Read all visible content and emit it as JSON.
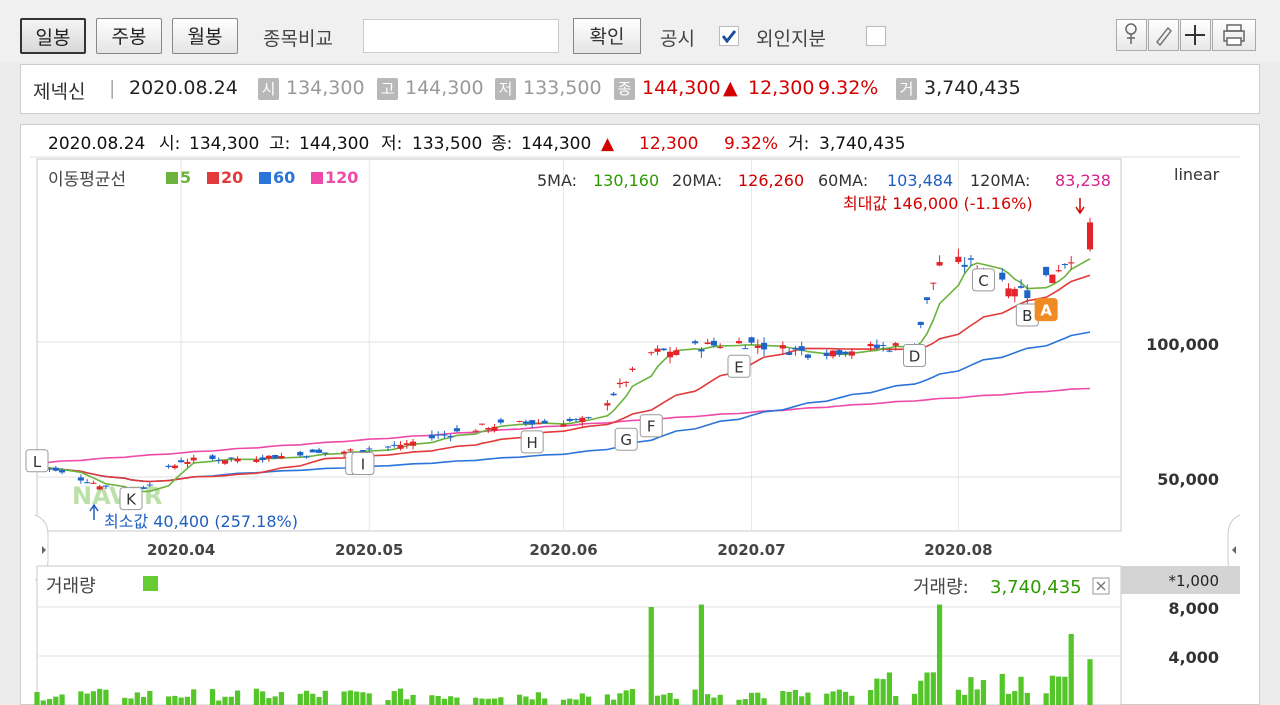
{
  "toolbar": {
    "tabs": [
      {
        "label": "일봉",
        "active": true
      },
      {
        "label": "주봉",
        "active": false
      },
      {
        "label": "월봉",
        "active": false
      }
    ],
    "compare_label": "종목비교",
    "compare_value": "",
    "confirm_label": "확인",
    "disclosure_label": "공시",
    "disclosure_checked": true,
    "foreign_label": "외인지분",
    "foreign_checked": false,
    "tool_icons": [
      "pin-icon",
      "pen-icon",
      "crosshair-icon",
      "printer-icon"
    ]
  },
  "info": {
    "name": "제넥신",
    "date": "2020.08.24",
    "open_badge": "시",
    "open": "134,300",
    "high_badge": "고",
    "high": "144,300",
    "low_badge": "저",
    "low": "133,500",
    "close_badge": "종",
    "close": "144,300",
    "change_arrow": "▲",
    "change": "12,300",
    "change_pct": "9.32%",
    "volume_badge": "거",
    "volume": "3,740,435",
    "colors": {
      "up": "#d40000",
      "muted": "#999999",
      "accent": "#f08a22"
    }
  },
  "chart_data": {
    "type": "candlestick",
    "header": {
      "date": "2020.08.24",
      "open_label": "시:",
      "open": "134,300",
      "high_label": "고:",
      "high": "144,300",
      "low_label": "저:",
      "low": "133,500",
      "close_label": "종:",
      "close": "144,300",
      "arrow": "▲",
      "change": "12,300",
      "change_pct": "9.32%",
      "volume_label": "거:",
      "volume": "3,740,435"
    },
    "ma_legend_title": "이동평균선",
    "ma_series": [
      {
        "name": "5",
        "color": "#6cb33e"
      },
      {
        "name": "20",
        "color": "#e23a3a"
      },
      {
        "name": "60",
        "color": "#2b74d9"
      },
      {
        "name": "120",
        "color": "#ee4aa9"
      }
    ],
    "ma_values": [
      {
        "label": "5MA:",
        "value": "130,160",
        "color": "#2e9a00"
      },
      {
        "label": "20MA:",
        "value": "126,260",
        "color": "#cc0000"
      },
      {
        "label": "60MA:",
        "value": "103,484",
        "color": "#1f5fbf"
      },
      {
        "label": "120MA:",
        "value": "83,238",
        "color": "#d6238a"
      }
    ],
    "scale_label": "linear",
    "price_axis": {
      "ticks": [
        {
          "value": 100000,
          "label": "100,000"
        },
        {
          "value": 50000,
          "label": "50,000"
        }
      ],
      "ylim": [
        30000,
        160000
      ]
    },
    "x_ticks": [
      {
        "date": "2020-04-01",
        "label": "2020.04"
      },
      {
        "date": "2020-05-01",
        "label": "2020.05"
      },
      {
        "date": "2020-06-01",
        "label": "2020.06"
      },
      {
        "date": "2020-07-01",
        "label": "2020.07"
      },
      {
        "date": "2020-08-03",
        "label": "2020.08"
      }
    ],
    "max_annotation": "최대값 146,000 (-1.16%)",
    "min_annotation": "최소값 40,400 (257.18%)",
    "events": [
      "A",
      "B",
      "C",
      "D",
      "E",
      "F",
      "G",
      "H",
      "I",
      "J",
      "K",
      "L"
    ],
    "close_points": [
      {
        "date": "2020-03-09",
        "close": 54000
      },
      {
        "date": "2020-03-18",
        "close": 48000
      },
      {
        "date": "2020-03-24",
        "close": 43000
      },
      {
        "date": "2020-04-01",
        "close": 56000
      },
      {
        "date": "2020-04-20",
        "close": 58000
      },
      {
        "date": "2020-05-04",
        "close": 61000
      },
      {
        "date": "2020-05-20",
        "close": 69000
      },
      {
        "date": "2020-06-05",
        "close": 71000
      },
      {
        "date": "2020-06-15",
        "close": 96000
      },
      {
        "date": "2020-06-29",
        "close": 100000
      },
      {
        "date": "2020-07-10",
        "close": 96000
      },
      {
        "date": "2020-07-27",
        "close": 99000
      },
      {
        "date": "2020-07-31",
        "close": 130000
      },
      {
        "date": "2020-08-07",
        "close": 128000
      },
      {
        "date": "2020-08-14",
        "close": 118000
      },
      {
        "date": "2020-08-21",
        "close": 132000
      },
      {
        "date": "2020-08-24",
        "close": 144300
      }
    ],
    "volume_panel": {
      "title": "거래량",
      "legend_color": "#66cc33",
      "value_label": "거래량:",
      "value": "3,740,435",
      "unit": "*1,000",
      "ticks": [
        {
          "value": 8000,
          "label": "8,000"
        },
        {
          "value": 4000,
          "label": "4,000"
        }
      ],
      "peaks_thousands": [
        {
          "date": "2020-06-15",
          "volume": 8000
        },
        {
          "date": "2020-06-23",
          "volume": 8200
        },
        {
          "date": "2020-07-31",
          "volume": 8200
        },
        {
          "date": "2020-08-21",
          "volume": 5800
        },
        {
          "date": "2020-08-24",
          "volume": 3740
        }
      ]
    }
  },
  "watermark": "NAVER"
}
